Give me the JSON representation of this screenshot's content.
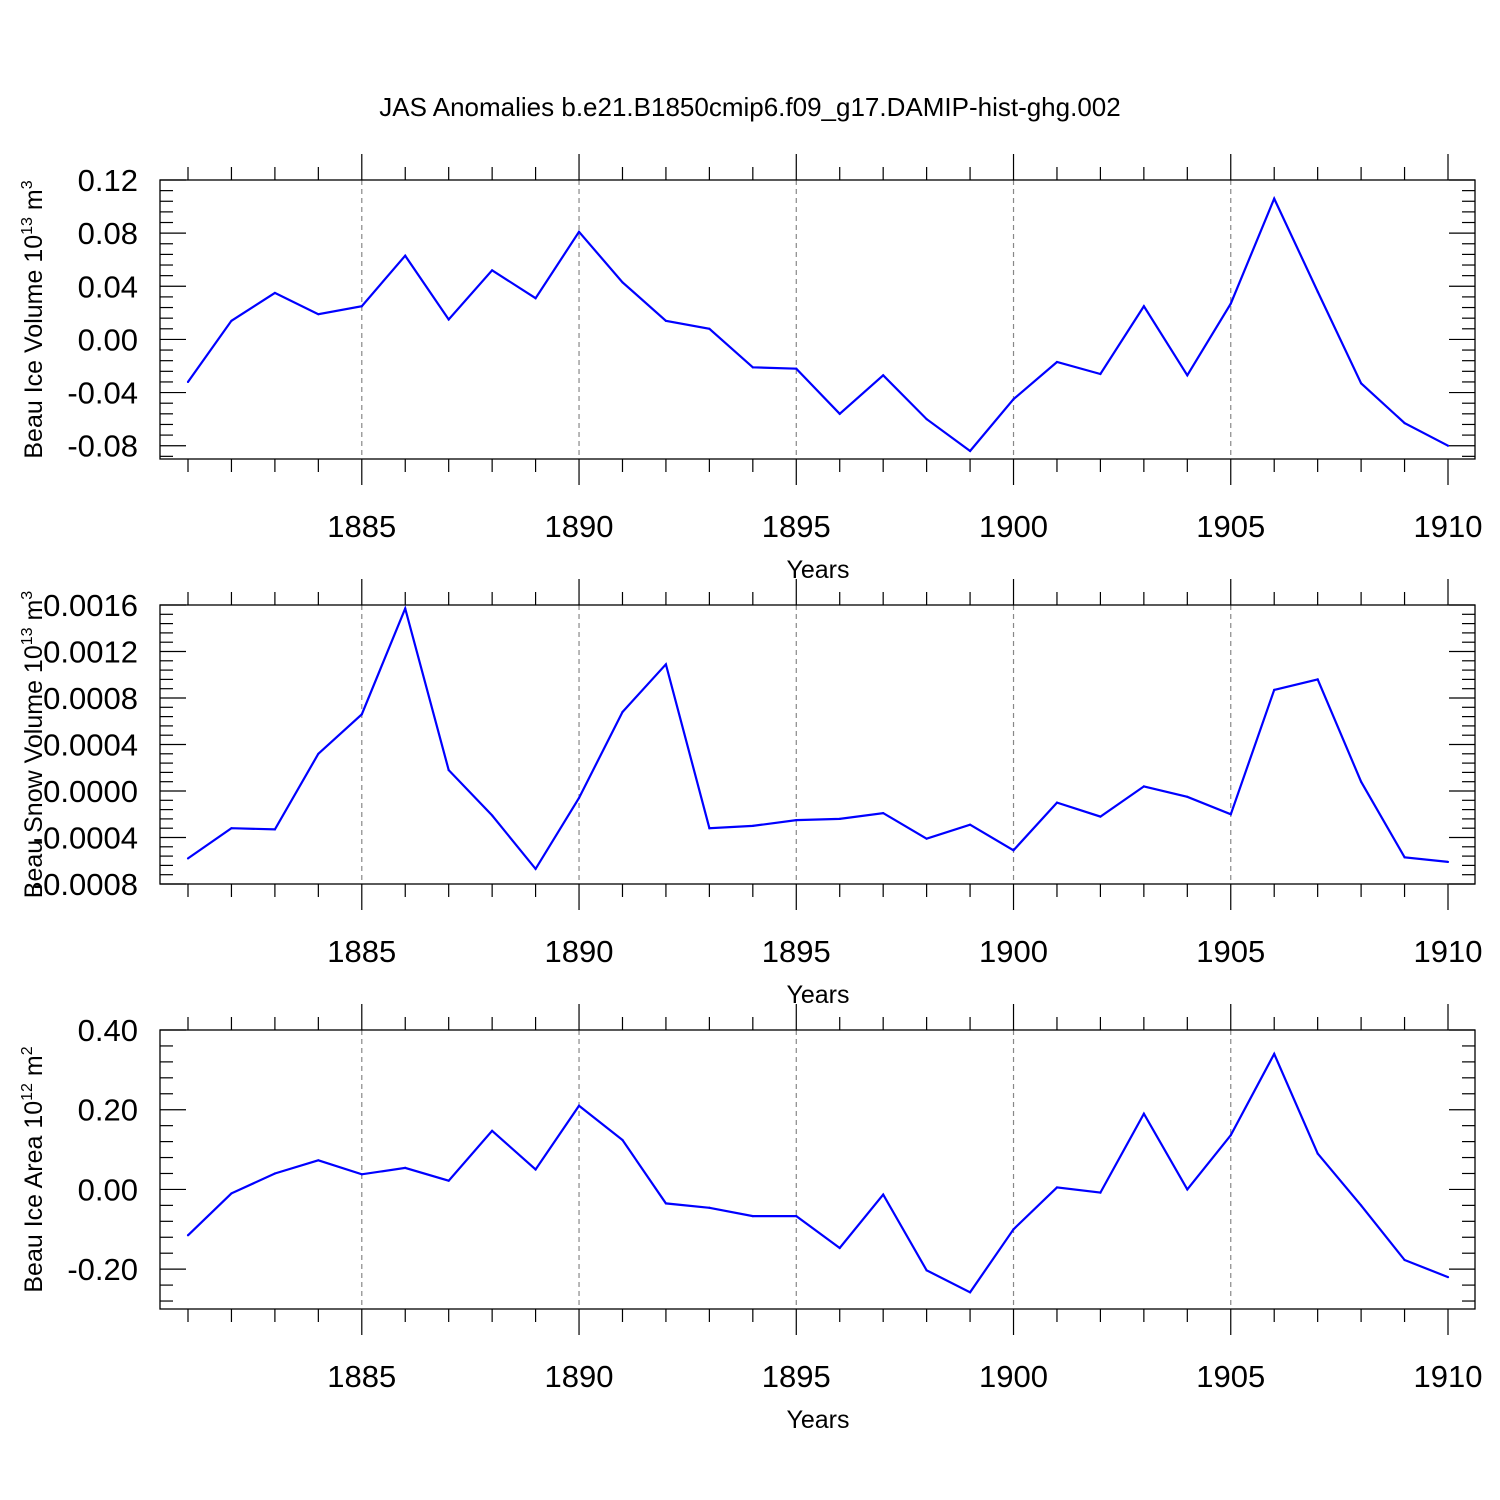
{
  "figure_title": "JAS Anomalies b.e21.B1850cmip6.f09_g17.DAMIP-hist-ghg.002",
  "colors": {
    "line": "#0000ff",
    "grid": "#888888",
    "axis": "#000000"
  },
  "chart_data": [
    {
      "type": "line",
      "title": "JAS Anomalies b.e21.B1850cmip6.f09_g17.DAMIP-hist-ghg.002",
      "ylabel": "Beau Ice Volume 10",
      "ylabel_exp": "13",
      "ylabel_unit": " m",
      "ylabel_unit_exp": "3",
      "xlabel": "Years",
      "xlim": [
        1881,
        1910
      ],
      "ylim": [
        -0.09,
        0.12
      ],
      "yticks": [
        -0.08,
        -0.04,
        0.0,
        0.04,
        0.08,
        0.12
      ],
      "yticklabels": [
        "-0.08",
        "-0.04",
        "0.00",
        "0.04",
        "0.08",
        "0.12"
      ],
      "xticks": [
        1885,
        1890,
        1895,
        1900,
        1905,
        1910
      ],
      "xticklabels": [
        "1885",
        "1890",
        "1895",
        "1900",
        "1905",
        "1910"
      ],
      "grid": "vertical dashed at major x ticks",
      "x": [
        1881,
        1882,
        1883,
        1884,
        1885,
        1886,
        1887,
        1888,
        1889,
        1890,
        1891,
        1892,
        1893,
        1894,
        1895,
        1896,
        1897,
        1898,
        1899,
        1900,
        1901,
        1902,
        1903,
        1904,
        1905,
        1906,
        1907,
        1908,
        1909,
        1910
      ],
      "values": [
        -0.032,
        0.014,
        0.035,
        0.019,
        0.025,
        0.063,
        0.015,
        0.052,
        0.031,
        0.081,
        0.043,
        0.014,
        0.008,
        -0.021,
        -0.022,
        -0.056,
        -0.027,
        -0.06,
        -0.084,
        -0.045,
        -0.017,
        -0.026,
        0.025,
        -0.027,
        0.027,
        0.106,
        0.036,
        -0.033,
        -0.063,
        -0.08
      ]
    },
    {
      "type": "line",
      "ylabel": "Beau Snow Volume 10",
      "ylabel_exp": "13",
      "ylabel_unit": " m",
      "ylabel_unit_exp": "3",
      "xlabel": "Years",
      "xlim": [
        1881,
        1910
      ],
      "ylim": [
        -0.0008,
        0.0016
      ],
      "yticks": [
        -0.0008,
        -0.0004,
        0.0,
        0.0004,
        0.0008,
        0.0012,
        0.0016
      ],
      "yticklabels": [
        "-0.0008",
        "-0.0004",
        "0.0000",
        "0.0004",
        "0.0008",
        "0.0012",
        "0.0016"
      ],
      "xticks": [
        1885,
        1890,
        1895,
        1900,
        1905,
        1910
      ],
      "xticklabels": [
        "1885",
        "1890",
        "1895",
        "1900",
        "1905",
        "1910"
      ],
      "grid": "vertical dashed at major x ticks",
      "x": [
        1881,
        1882,
        1883,
        1884,
        1885,
        1886,
        1887,
        1888,
        1889,
        1890,
        1891,
        1892,
        1893,
        1894,
        1895,
        1896,
        1897,
        1898,
        1899,
        1900,
        1901,
        1902,
        1903,
        1904,
        1905,
        1906,
        1907,
        1908,
        1909,
        1910
      ],
      "values": [
        -0.00058,
        -0.00032,
        -0.00033,
        0.00032,
        0.00066,
        0.00157,
        0.00018,
        -0.00021,
        -0.00067,
        -6e-05,
        0.00068,
        0.00109,
        -0.00032,
        -0.0003,
        -0.00025,
        -0.00024,
        -0.00019,
        -0.00041,
        -0.00029,
        -0.00051,
        -0.0001,
        -0.00022,
        4e-05,
        -5e-05,
        -0.0002,
        0.00087,
        0.00096,
        8e-05,
        -0.00057,
        -0.00061
      ]
    },
    {
      "type": "line",
      "ylabel": "Beau Ice Area 10",
      "ylabel_exp": "12",
      "ylabel_unit": " m",
      "ylabel_unit_exp": "2",
      "xlabel": "Years",
      "xlim": [
        1881,
        1910
      ],
      "ylim": [
        -0.3,
        0.4
      ],
      "yticks": [
        -0.2,
        0.0,
        0.2,
        0.4
      ],
      "yticklabels": [
        "-0.20",
        "0.00",
        "0.20",
        "0.40"
      ],
      "xticks": [
        1885,
        1890,
        1895,
        1900,
        1905,
        1910
      ],
      "xticklabels": [
        "1885",
        "1890",
        "1895",
        "1900",
        "1905",
        "1910"
      ],
      "grid": "vertical dashed at major x ticks",
      "x": [
        1881,
        1882,
        1883,
        1884,
        1885,
        1886,
        1887,
        1888,
        1889,
        1890,
        1891,
        1892,
        1893,
        1894,
        1895,
        1896,
        1897,
        1898,
        1899,
        1900,
        1901,
        1902,
        1903,
        1904,
        1905,
        1906,
        1907,
        1908,
        1909,
        1910
      ],
      "values": [
        -0.115,
        -0.01,
        0.04,
        0.073,
        0.038,
        0.054,
        0.022,
        0.147,
        0.05,
        0.21,
        0.124,
        -0.035,
        -0.046,
        -0.067,
        -0.067,
        -0.147,
        -0.013,
        -0.203,
        -0.258,
        -0.1,
        0.005,
        -0.008,
        0.19,
        0,
        0.136,
        0.34,
        0.09,
        -0.04,
        -0.177,
        -0.22
      ]
    }
  ]
}
